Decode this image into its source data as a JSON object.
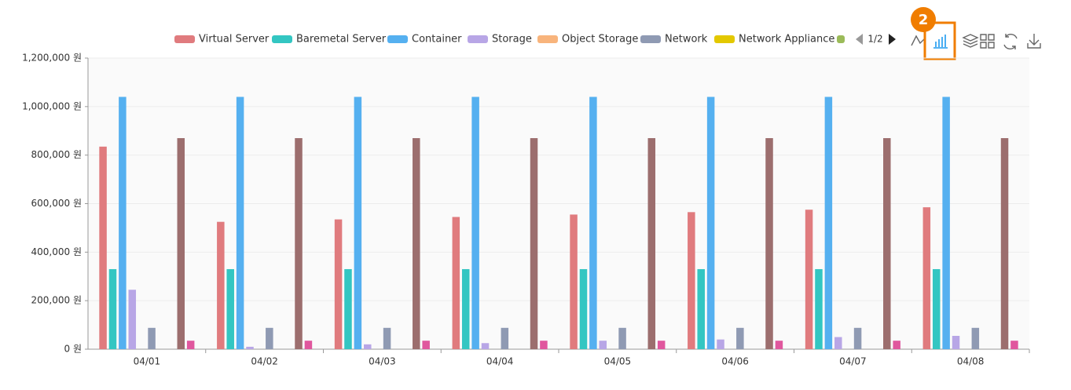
{
  "chart_data": {
    "type": "bar",
    "categories": [
      "04/01",
      "04/02",
      "04/03",
      "04/04",
      "04/05",
      "04/06",
      "04/07",
      "04/08"
    ],
    "series": [
      {
        "name": "Virtual Server",
        "color": "#e07b7e",
        "values": [
          835000,
          525000,
          535000,
          545000,
          555000,
          565000,
          575000,
          585000
        ]
      },
      {
        "name": "Baremetal Server",
        "color": "#33c6c2",
        "values": [
          330000,
          330000,
          330000,
          330000,
          330000,
          330000,
          330000,
          330000
        ]
      },
      {
        "name": "Container",
        "color": "#55b0f0",
        "values": [
          1040000,
          1040000,
          1040000,
          1040000,
          1040000,
          1040000,
          1040000,
          1040000
        ]
      },
      {
        "name": "Storage",
        "color": "#b8a6e6",
        "values": [
          245000,
          10000,
          20000,
          25000,
          35000,
          40000,
          50000,
          55000
        ]
      },
      {
        "name": "Object Storage",
        "color": "#f8b47c",
        "values": [
          0,
          0,
          0,
          0,
          0,
          0,
          0,
          0
        ]
      },
      {
        "name": "Network",
        "color": "#8f9ab3",
        "values": [
          88000,
          88000,
          88000,
          88000,
          88000,
          88000,
          88000,
          88000
        ]
      },
      {
        "name": "Network Appliance",
        "color": "#e3c800",
        "values": [
          0,
          0,
          0,
          0,
          0,
          0,
          0,
          0
        ]
      },
      {
        "name": null,
        "color": "#9bbb59",
        "values": [
          0,
          0,
          0,
          0,
          0,
          0,
          0,
          0
        ]
      },
      {
        "name": null,
        "color": "#9c6e6e",
        "values": [
          870000,
          870000,
          870000,
          870000,
          870000,
          870000,
          870000,
          870000
        ]
      },
      {
        "name": null,
        "color": "#e0579e",
        "values": [
          35000,
          35000,
          35000,
          35000,
          35000,
          35000,
          35000,
          35000
        ]
      }
    ],
    "ylim": [
      0,
      1200000
    ],
    "yticks": [
      {
        "value": 0,
        "label": "0 원"
      },
      {
        "value": 200000,
        "label": "200,000 원"
      },
      {
        "value": 400000,
        "label": "400,000 원"
      },
      {
        "value": 600000,
        "label": "600,000 원"
      },
      {
        "value": 800000,
        "label": "800,000 원"
      },
      {
        "value": 1000000,
        "label": "1,000,000 원"
      },
      {
        "value": 1200000,
        "label": "1,200,000 원"
      }
    ],
    "grid": true,
    "legend_page": "1/2",
    "annotation": "2"
  }
}
